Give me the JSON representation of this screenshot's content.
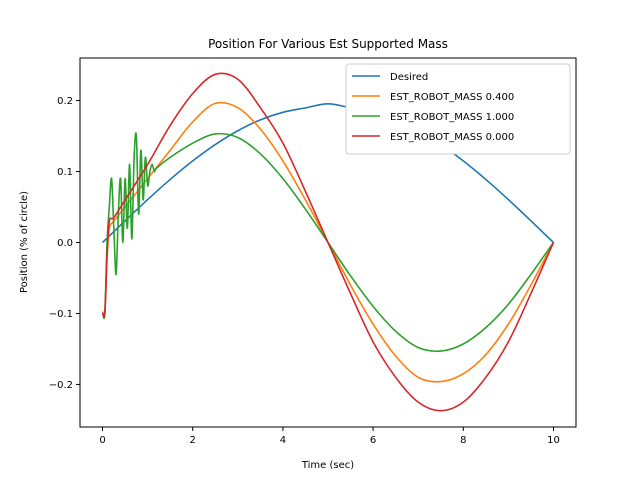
{
  "chart_data": {
    "type": "line",
    "title": "Position For Various Est Supported Mass",
    "xlabel": "Time (sec)",
    "ylabel": "Position (% of circle)",
    "xlim": [
      -0.5,
      10.5
    ],
    "ylim": [
      -0.26,
      0.26
    ],
    "xticks": [
      0,
      2,
      4,
      6,
      8,
      10
    ],
    "xtick_labels": [
      "0",
      "2",
      "4",
      "6",
      "8",
      "10"
    ],
    "yticks": [
      -0.2,
      -0.1,
      0.0,
      0.1,
      0.2
    ],
    "ytick_labels": [
      "−0.2",
      "−0.1",
      "0.0",
      "0.1",
      "0.2"
    ],
    "grid": false,
    "legend_position": "top-right",
    "series": [
      {
        "name": "Desired",
        "color": "#1f77b4",
        "x": [
          0,
          0.5,
          1,
          1.5,
          2,
          2.5,
          3,
          3.5,
          4,
          4.5,
          5,
          5.5,
          6,
          6.5,
          7,
          7.5,
          8,
          8.5,
          9,
          9.5,
          10
        ],
        "y": [
          0,
          0.0306,
          0.0605,
          0.0889,
          0.115,
          0.138,
          0.1575,
          0.1728,
          0.1835,
          0.1897,
          0.1955,
          0.1897,
          0.1835,
          0.1728,
          0.1575,
          0.138,
          0.115,
          0.0889,
          0.0605,
          0.0306,
          0
        ]
      },
      {
        "name": "EST_ROBOT_MASS 0.400",
        "color": "#ff7f0e",
        "x": [
          0,
          0.05,
          0.1,
          0.15,
          0.25,
          0.5,
          1,
          1.5,
          2,
          2.5,
          3,
          3.5,
          4,
          4.5,
          5,
          5.5,
          6,
          6.5,
          7,
          7.5,
          8,
          8.5,
          9,
          9.5,
          10
        ],
        "y": [
          -0.098,
          -0.1,
          -0.02,
          0.02,
          0.03,
          0.05,
          0.09,
          0.13,
          0.17,
          0.196,
          0.19,
          0.16,
          0.115,
          0.06,
          0.0,
          -0.06,
          -0.115,
          -0.16,
          -0.19,
          -0.196,
          -0.185,
          -0.158,
          -0.115,
          -0.06,
          0.0
        ]
      },
      {
        "name": "EST_ROBOT_MASS 1.000",
        "color": "#2ca02c",
        "x": [
          0,
          0.05,
          0.1,
          0.15,
          0.2,
          0.25,
          0.3,
          0.35,
          0.4,
          0.45,
          0.5,
          0.55,
          0.6,
          0.65,
          0.7,
          0.75,
          0.8,
          0.85,
          0.9,
          0.95,
          1.0,
          1.05,
          1.1,
          1.15,
          1.2,
          1.5,
          2,
          2.5,
          3,
          3.5,
          4,
          4.5,
          5,
          5.5,
          6,
          6.5,
          7,
          7.5,
          8,
          8.5,
          9,
          9.5,
          10
        ],
        "y": [
          -0.098,
          -0.1,
          0.0,
          0.05,
          0.09,
          0.02,
          -0.045,
          0.04,
          0.09,
          0.0,
          0.09,
          0.02,
          0.11,
          0.005,
          0.12,
          0.15,
          0.04,
          0.13,
          0.06,
          0.12,
          0.08,
          0.1,
          0.11,
          0.1,
          0.105,
          0.12,
          0.14,
          0.153,
          0.148,
          0.125,
          0.09,
          0.047,
          0.0,
          -0.047,
          -0.09,
          -0.125,
          -0.148,
          -0.153,
          -0.143,
          -0.12,
          -0.087,
          -0.045,
          0.0
        ]
      },
      {
        "name": "EST_ROBOT_MASS 0.000",
        "color": "#d62728",
        "x": [
          0,
          0.05,
          0.1,
          0.15,
          0.25,
          0.5,
          1,
          1.5,
          2,
          2.5,
          3,
          3.5,
          4,
          4.5,
          5,
          5.5,
          6,
          6.5,
          7,
          7.5,
          8,
          8.5,
          9,
          9.5,
          10
        ],
        "y": [
          -0.098,
          -0.1,
          -0.02,
          0.03,
          0.035,
          0.06,
          0.11,
          0.165,
          0.21,
          0.237,
          0.23,
          0.19,
          0.14,
          0.072,
          0.0,
          -0.072,
          -0.14,
          -0.19,
          -0.225,
          -0.237,
          -0.225,
          -0.19,
          -0.14,
          -0.072,
          0.0
        ]
      }
    ]
  }
}
